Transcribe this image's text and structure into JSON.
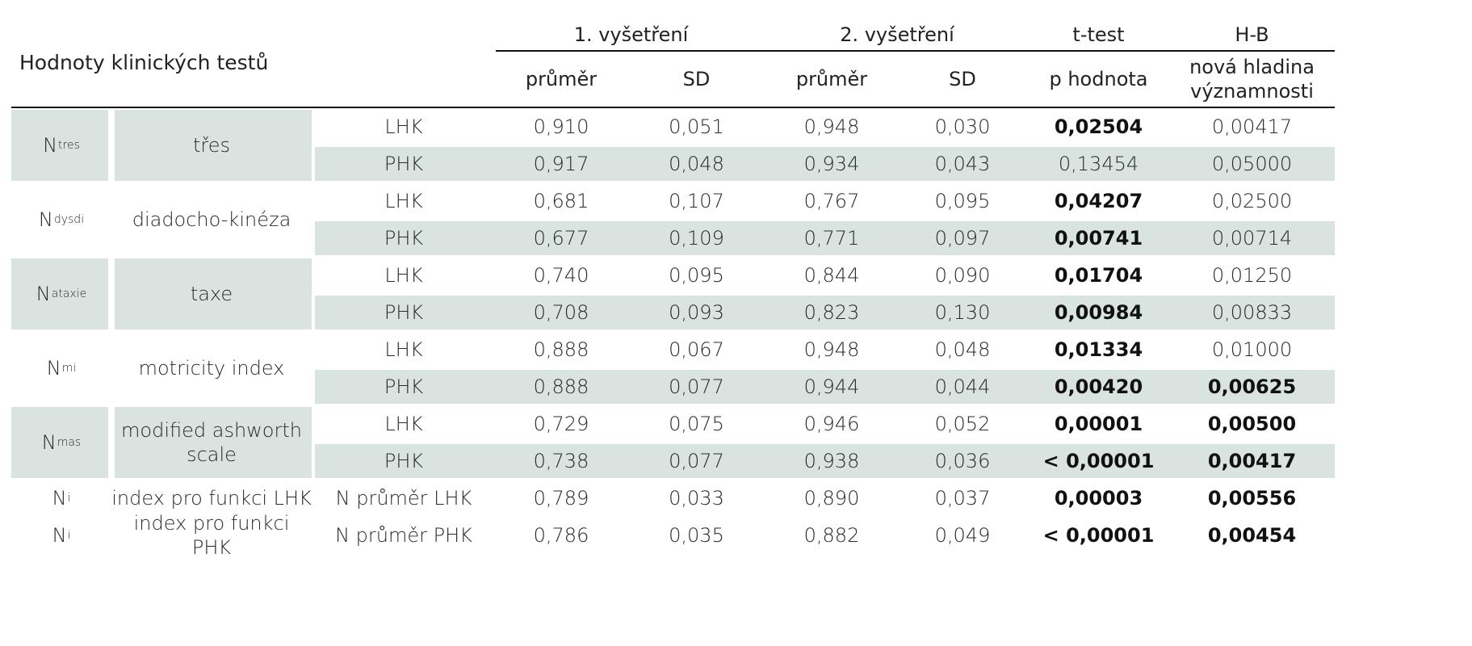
{
  "title": "Hodnoty klinických testů",
  "header": {
    "group1": "1. vyšetření",
    "group2": "2. vyšetření",
    "group3": "t-test",
    "group4": "H-B",
    "mean1": "průměr",
    "sd1": "SD",
    "mean2": "průměr",
    "sd2": "SD",
    "pvalue": "p hodnota",
    "newlevel_line1": "nová hladina",
    "newlevel_line2": "významnosti"
  },
  "groups": [
    {
      "n_main": "N",
      "n_sub": "tres",
      "label": "třes",
      "label_line2": ""
    },
    {
      "n_main": "N",
      "n_sub": "dysdi",
      "label": "diadocho-kinéza",
      "label_line2": ""
    },
    {
      "n_main": "N",
      "n_sub": "ataxie",
      "label": "taxe",
      "label_line2": ""
    },
    {
      "n_main": "N",
      "n_sub": "mi",
      "label": "motricity index",
      "label_line2": ""
    },
    {
      "n_main": "N",
      "n_sub": "mas",
      "label": "modified ashworth",
      "label_line2": "scale"
    },
    {
      "n_main": "N",
      "n_sub": "i",
      "label": "index pro funkci LHK",
      "label_line2": ""
    },
    {
      "n_main": "N",
      "n_sub": "i",
      "label": "index pro funkci PHK",
      "label_line2": ""
    }
  ],
  "rows": [
    {
      "side": "LHK",
      "m1": "0,910",
      "sd1": "0,051",
      "m2": "0,948",
      "sd2": "0,030",
      "p": "0,02504",
      "hb": "0,00417",
      "p_bold": true,
      "hb_bold": false
    },
    {
      "side": "PHK",
      "m1": "0,917",
      "sd1": "0,048",
      "m2": "0,934",
      "sd2": "0,043",
      "p": "0,13454",
      "hb": "0,05000",
      "p_bold": false,
      "hb_bold": false
    },
    {
      "side": "LHK",
      "m1": "0,681",
      "sd1": "0,107",
      "m2": "0,767",
      "sd2": "0,095",
      "p": "0,04207",
      "hb": "0,02500",
      "p_bold": true,
      "hb_bold": false
    },
    {
      "side": "PHK",
      "m1": "0,677",
      "sd1": "0,109",
      "m2": "0,771",
      "sd2": "0,097",
      "p": "0,00741",
      "hb": "0,00714",
      "p_bold": true,
      "hb_bold": false
    },
    {
      "side": "LHK",
      "m1": "0,740",
      "sd1": "0,095",
      "m2": "0,844",
      "sd2": "0,090",
      "p": "0,01704",
      "hb": "0,01250",
      "p_bold": true,
      "hb_bold": false
    },
    {
      "side": "PHK",
      "m1": "0,708",
      "sd1": "0,093",
      "m2": "0,823",
      "sd2": "0,130",
      "p": "0,00984",
      "hb": "0,00833",
      "p_bold": true,
      "hb_bold": false
    },
    {
      "side": "LHK",
      "m1": "0,888",
      "sd1": "0,067",
      "m2": "0,948",
      "sd2": "0,048",
      "p": "0,01334",
      "hb": "0,01000",
      "p_bold": true,
      "hb_bold": false
    },
    {
      "side": "PHK",
      "m1": "0,888",
      "sd1": "0,077",
      "m2": "0,944",
      "sd2": "0,044",
      "p": "0,00420",
      "hb": "0,00625",
      "p_bold": true,
      "hb_bold": true
    },
    {
      "side": "LHK",
      "m1": "0,729",
      "sd1": "0,075",
      "m2": "0,946",
      "sd2": "0,052",
      "p": "0,00001",
      "hb": "0,00500",
      "p_bold": true,
      "hb_bold": true
    },
    {
      "side": "PHK",
      "m1": "0,738",
      "sd1": "0,077",
      "m2": "0,938",
      "sd2": "0,036",
      "p": "< 0,00001",
      "hb": "0,00417",
      "p_bold": true,
      "hb_bold": true
    },
    {
      "side": "N průměr LHK",
      "m1": "0,789",
      "sd1": "0,033",
      "m2": "0,890",
      "sd2": "0,037",
      "p": "0,00003",
      "hb": "0,00556",
      "p_bold": true,
      "hb_bold": true
    },
    {
      "side": "N průměr PHK",
      "m1": "0,786",
      "sd1": "0,035",
      "m2": "0,882",
      "sd2": "0,049",
      "p": "< 0,00001",
      "hb": "0,00454",
      "p_bold": true,
      "hb_bold": true
    }
  ],
  "colors": {
    "shade": "#d9e3df",
    "rule": "#111111"
  }
}
